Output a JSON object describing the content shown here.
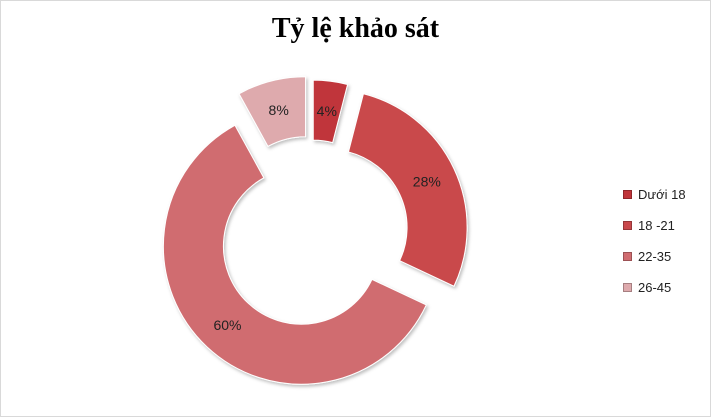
{
  "chart_data": {
    "type": "donut",
    "title": "Tỷ lệ khảo sát",
    "categories": [
      "Dưới 18",
      "18 -21",
      "22-35",
      "26-45"
    ],
    "values": [
      4,
      28,
      60,
      8
    ],
    "data_labels": [
      "4%",
      "28%",
      "60%",
      "8%"
    ],
    "colors": [
      "#c0353a",
      "#c9484c",
      "#d06c70",
      "#deaaad"
    ],
    "legend_position": "right",
    "exploded": true
  }
}
